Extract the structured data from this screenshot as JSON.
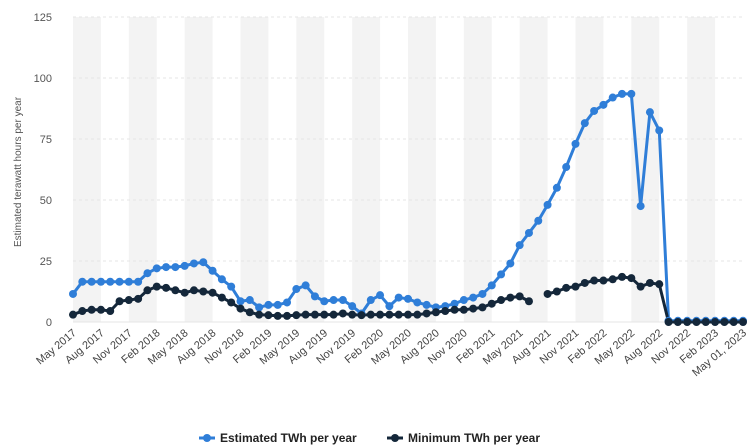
{
  "colors": {
    "estimated": "#2f7ed8",
    "minimum": "#14273a",
    "grid": "#e6e6e6",
    "band": "#f3f3f3"
  },
  "chart_data": {
    "type": "line",
    "title": "",
    "xlabel": "",
    "ylabel": "Estimated terawatt hours per year",
    "ylim": [
      0,
      125
    ],
    "yticks": [
      0,
      25,
      50,
      75,
      100,
      125
    ],
    "grid": true,
    "legend_position": "bottom-center",
    "x_tick_labels": [
      "May 2017",
      "Aug 2017",
      "Nov 2017",
      "Feb 2018",
      "May 2018",
      "Aug 2018",
      "Nov 2018",
      "Feb 2019",
      "May 2019",
      "Aug 2019",
      "Nov 2019",
      "Feb 2020",
      "May 2020",
      "Aug 2020",
      "Nov 2020",
      "Feb 2021",
      "May 2021",
      "Aug 2021",
      "Nov 2021",
      "Feb 2022",
      "May 2022",
      "Aug 2022",
      "Nov 2022",
      "Feb 2023",
      "May 01, 2023"
    ],
    "x": [
      "May 2017",
      "Jun 2017",
      "Jul 2017",
      "Aug 2017",
      "Sep 2017",
      "Oct 2017",
      "Nov 2017",
      "Dec 2017",
      "Jan 2018",
      "Feb 2018",
      "Mar 2018",
      "Apr 2018",
      "May 2018",
      "Jun 2018",
      "Jul 2018",
      "Aug 2018",
      "Sep 2018",
      "Oct 2018",
      "Nov 2018",
      "Dec 2018",
      "Jan 2019",
      "Feb 2019",
      "Mar 2019",
      "Apr 2019",
      "May 2019",
      "Jun 2019",
      "Jul 2019",
      "Aug 2019",
      "Sep 2019",
      "Oct 2019",
      "Nov 2019",
      "Dec 2019",
      "Jan 2020",
      "Feb 2020",
      "Mar 2020",
      "Apr 2020",
      "May 2020",
      "Jun 2020",
      "Jul 2020",
      "Aug 2020",
      "Sep 2020",
      "Oct 2020",
      "Nov 2020",
      "Dec 2020",
      "Jan 2021",
      "Feb 2021",
      "Mar 2021",
      "Apr 2021",
      "May 2021",
      "Jun 2021",
      "Jul 2021",
      "Aug 2021",
      "Sep 2021",
      "Oct 2021",
      "Nov 2021",
      "Dec 2021",
      "Jan 2022",
      "Feb 2022",
      "Mar 2022",
      "Apr 2022",
      "May 2022",
      "Jun 2022",
      "Jul 2022",
      "Aug 2022",
      "Sep 2022",
      "Oct 2022",
      "Nov 2022",
      "Dec 2022",
      "Jan 2023",
      "Feb 2023",
      "Mar 2023",
      "Apr 2023",
      "May 01, 2023"
    ],
    "series": [
      {
        "name": "Estimated TWh per year",
        "values": [
          11.5,
          16.5,
          16.5,
          16.5,
          16.5,
          16.5,
          16.5,
          16.5,
          20,
          22,
          22.5,
          22.5,
          23,
          24,
          24.5,
          21,
          17.5,
          14.5,
          8.5,
          9,
          6,
          7,
          7,
          8,
          13.5,
          15,
          10.5,
          8.5,
          9,
          9,
          6.5,
          3.5,
          9,
          11,
          6.5,
          10,
          9.5,
          8,
          7,
          6,
          6.5,
          7.5,
          9,
          10,
          11.5,
          15,
          19.5,
          24,
          31.5,
          36.5,
          41.5,
          48,
          55,
          63.5,
          73,
          81.5,
          86.5,
          89,
          92,
          93.5,
          93.5,
          47.5,
          86,
          78.5,
          0.5,
          0.5,
          0.5,
          0.5,
          0.5,
          0.5,
          0.5,
          0.5,
          0.5
        ]
      },
      {
        "name": "Minimum TWh per year",
        "values": [
          3,
          4.5,
          5,
          5,
          4.5,
          8.5,
          9,
          9.5,
          13,
          14.5,
          14,
          13,
          12,
          13,
          12.5,
          12,
          10,
          8,
          5.5,
          4,
          3,
          2.8,
          2.5,
          2.5,
          2.8,
          3,
          3,
          3,
          3,
          3.5,
          3,
          2.8,
          3,
          3,
          3,
          3,
          3,
          3,
          3.5,
          4,
          4.5,
          5,
          5,
          5.5,
          6,
          7.5,
          9,
          10,
          10.5,
          8.5,
          null,
          11.5,
          12.5,
          14,
          14.5,
          16,
          17,
          17,
          17.5,
          18.5,
          18,
          14.5,
          16,
          15.5,
          0,
          0,
          0,
          0,
          0,
          0,
          0,
          0,
          0
        ]
      }
    ]
  }
}
